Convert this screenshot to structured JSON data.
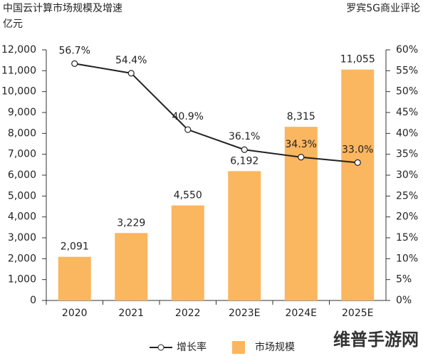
{
  "chart_data": {
    "type": "bar-line",
    "title": "中国云计算市场规模及增速",
    "y_label": "亿元",
    "source": "罗宾5G商业评论",
    "watermark": "维普手游网",
    "categories": [
      "2020",
      "2021",
      "2022",
      "2023E",
      "2024E",
      "2025E"
    ],
    "series": [
      {
        "name": "市场规模",
        "type": "bar",
        "color": "#fbb660",
        "values": [
          2091,
          3229,
          4550,
          6192,
          8315,
          11055
        ],
        "value_labels": [
          "2,091",
          "3,229",
          "4,550",
          "6,192",
          "8,315",
          "11,055"
        ]
      },
      {
        "name": "增长率",
        "type": "line",
        "axis": "y2",
        "color": "#222222",
        "values": [
          56.7,
          54.4,
          40.9,
          36.1,
          34.3,
          33.0
        ],
        "value_labels": [
          "56.7%",
          "54.4%",
          "40.9%",
          "36.1%",
          "34.3%",
          "33.0%"
        ]
      }
    ],
    "ylim": [
      0,
      12000
    ],
    "yticks": [
      0,
      {
        "value": 1000,
        "label": "1,000"
      },
      {
        "value": 2000,
        "label": "2,000"
      },
      {
        "value": 3000,
        "label": "3,000"
      },
      {
        "value": 4000,
        "label": "4,000"
      },
      {
        "value": 5000,
        "label": "5,000"
      },
      {
        "value": 6000,
        "label": "6,000"
      },
      {
        "value": 7000,
        "label": "7,000"
      },
      {
        "value": 8000,
        "label": "8,000"
      },
      {
        "value": 9000,
        "label": "9,000"
      },
      {
        "value": 10000,
        "label": "10,000"
      },
      {
        "value": 11000,
        "label": "11,000"
      },
      {
        "value": 12000,
        "label": "12,000"
      }
    ],
    "y2lim": [
      0,
      60
    ],
    "y2ticks": [
      {
        "value": 0,
        "label": "0%"
      },
      {
        "value": 5,
        "label": "5%"
      },
      {
        "value": 10,
        "label": "10%"
      },
      {
        "value": 15,
        "label": "15%"
      },
      {
        "value": 20,
        "label": "20%"
      },
      {
        "value": 25,
        "label": "25%"
      },
      {
        "value": 30,
        "label": "30%"
      },
      {
        "value": 35,
        "label": "35%"
      },
      {
        "value": 40,
        "label": "40%"
      },
      {
        "value": 45,
        "label": "45%"
      },
      {
        "value": 50,
        "label": "50%"
      },
      {
        "value": 55,
        "label": "55%"
      },
      {
        "value": 60,
        "label": "60%"
      }
    ],
    "grid": false,
    "legend": "bottom"
  }
}
